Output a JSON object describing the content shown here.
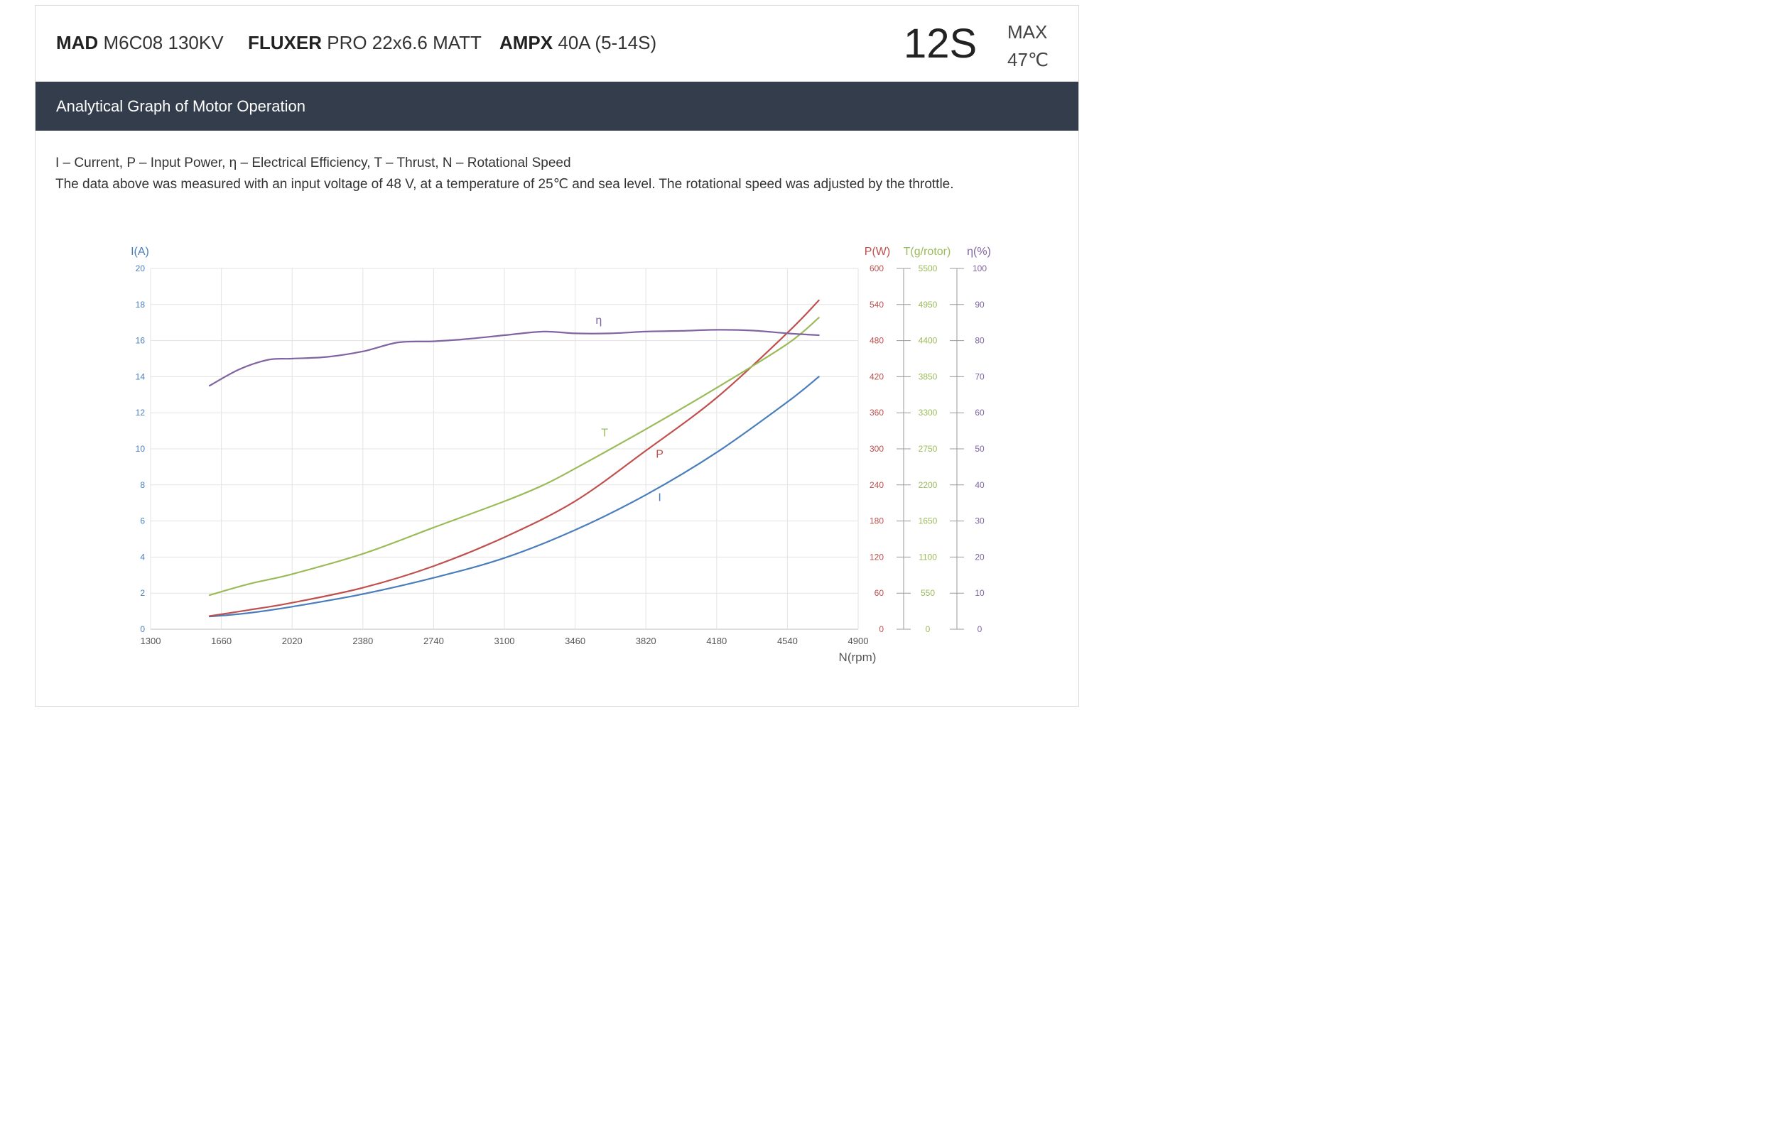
{
  "header": {
    "motor_brand": "MAD",
    "motor_model": "M6C08 130KV",
    "prop_brand": "FLUXER",
    "prop_model": "PRO 22x6.6 MATT",
    "esc_brand": "AMPX",
    "esc_model": "40A (5-14S)",
    "cells": "12S",
    "max_label": "MAX",
    "max_temp": "47℃"
  },
  "section": {
    "title": "Analytical Graph of Motor Operation"
  },
  "notes": {
    "legend": "I – Current, P – Input Power, η – Electrical Efficiency, T – Thrust,   N – Rotational Speed",
    "conditions": "The data above was measured with an input voltage of 48 V, at a temperature of 25℃ and sea level. The rotational speed was adjusted by the throttle."
  },
  "colors": {
    "current": "#4a7ebb",
    "power": "#c0504d",
    "thrust": "#9bbb59",
    "efficiency": "#8064a2",
    "header_bar": "#333d4b"
  },
  "chart_data": {
    "type": "line",
    "grid": true,
    "xlabel": "N(rpm)",
    "x_ticks": [
      1300,
      1660,
      2020,
      2380,
      2740,
      3100,
      3460,
      3820,
      4180,
      4540,
      4900
    ],
    "xlim": [
      1300,
      4900
    ],
    "axes": [
      {
        "id": "I",
        "label": "I(A)",
        "side": "left",
        "lim": [
          0,
          20
        ],
        "ticks": [
          0,
          2,
          4,
          6,
          8,
          10,
          12,
          14,
          16,
          18,
          20
        ],
        "color": "#4a7ebb"
      },
      {
        "id": "P",
        "label": "P(W)",
        "side": "right",
        "lim": [
          0,
          600
        ],
        "ticks": [
          0,
          60,
          120,
          180,
          240,
          300,
          360,
          420,
          480,
          540,
          600
        ],
        "color": "#c0504d"
      },
      {
        "id": "T",
        "label": "T(g/rotor)",
        "side": "right",
        "lim": [
          0,
          5500
        ],
        "ticks": [
          0,
          550,
          1100,
          1650,
          2200,
          2750,
          3300,
          3850,
          4400,
          4950,
          5500
        ],
        "color": "#9bbb59"
      },
      {
        "id": "eta",
        "label": "η(%)",
        "side": "right",
        "lim": [
          0,
          100
        ],
        "ticks": [
          0,
          10,
          20,
          30,
          40,
          50,
          60,
          70,
          80,
          90,
          100
        ],
        "color": "#8064a2"
      }
    ],
    "series": [
      {
        "name": "I",
        "axis": "I",
        "color": "#4a7ebb",
        "label_at": [
          3890,
          7.1
        ],
        "x": [
          1600,
          1800,
          2020,
          2380,
          2740,
          3100,
          3460,
          3820,
          4180,
          4540,
          4700
        ],
        "y": [
          0.7,
          0.9,
          1.25,
          1.95,
          2.85,
          3.95,
          5.5,
          7.45,
          9.8,
          12.6,
          14.0
        ]
      },
      {
        "name": "P",
        "axis": "P",
        "color": "#c0504d",
        "label_at": [
          3890,
          285
        ],
        "x": [
          1600,
          1800,
          2020,
          2380,
          2740,
          3100,
          3460,
          3820,
          4180,
          4540,
          4700
        ],
        "y": [
          22,
          32,
          44,
          69,
          105,
          153,
          213,
          297,
          385,
          493,
          547
        ]
      },
      {
        "name": "T",
        "axis": "T",
        "color": "#9bbb59",
        "label_at": [
          3610,
          2940
        ],
        "x": [
          1600,
          1800,
          2020,
          2380,
          2740,
          3100,
          3300,
          3460,
          3820,
          4180,
          4540,
          4700
        ],
        "y": [
          520,
          690,
          840,
          1150,
          1550,
          1950,
          2200,
          2450,
          3050,
          3680,
          4350,
          4750
        ]
      },
      {
        "name": "η",
        "axis": "eta",
        "color": "#8064a2",
        "label_at": [
          3580,
          84.6
        ],
        "x": [
          1600,
          1750,
          1900,
          2020,
          2200,
          2380,
          2560,
          2740,
          2920,
          3100,
          3300,
          3460,
          3640,
          3820,
          4000,
          4180,
          4360,
          4540,
          4700
        ],
        "y": [
          67.5,
          72,
          74.7,
          75,
          75.5,
          77,
          79.5,
          79.8,
          80.5,
          81.5,
          82.5,
          82.0,
          82.0,
          82.5,
          82.7,
          83.0,
          82.8,
          82.0,
          81.5
        ]
      }
    ]
  }
}
